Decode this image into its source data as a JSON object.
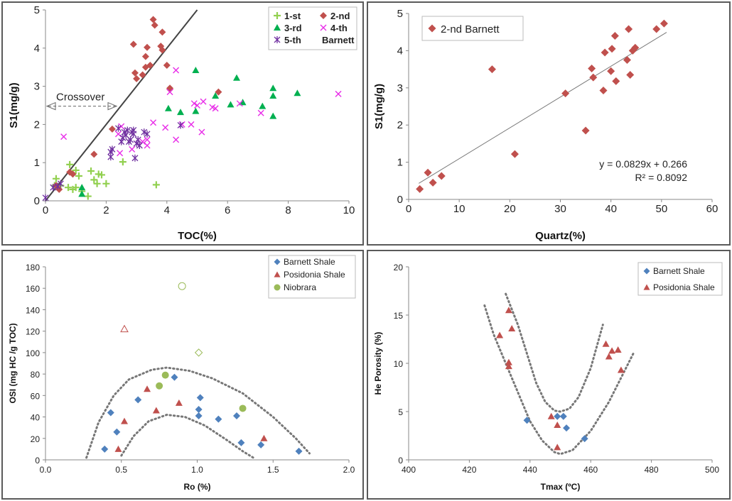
{
  "panels": [
    {
      "chart_data": {
        "type": "scatter",
        "xlabel": "TOC(%)",
        "ylabel": "S1(mg/g)",
        "xlim": [
          0,
          10
        ],
        "ylim": [
          0,
          5
        ],
        "xticks": [
          "0",
          "2",
          "4",
          "6",
          "8",
          "10"
        ],
        "yticks": [
          "0",
          "1",
          "2",
          "3",
          "4",
          "5"
        ],
        "legend_position": "top-right",
        "annotation": "Crossover",
        "crossover_line": [
          [
            0,
            0
          ],
          [
            5,
            5
          ]
        ],
        "series": [
          {
            "name": "1-st",
            "marker": "plus",
            "color": "#92d050",
            "points": [
              [
                0.3,
                0.4
              ],
              [
                0.35,
                0.58
              ],
              [
                0.5,
                0.4
              ],
              [
                0.8,
                0.95
              ],
              [
                0.9,
                0.72
              ],
              [
                1.0,
                0.8
              ],
              [
                1.1,
                0.65
              ],
              [
                0.75,
                0.35
              ],
              [
                0.9,
                0.3
              ],
              [
                1.0,
                0.35
              ],
              [
                1.2,
                0.25
              ],
              [
                1.4,
                0.12
              ],
              [
                1.5,
                0.78
              ],
              [
                1.6,
                0.55
              ],
              [
                1.7,
                0.45
              ],
              [
                1.75,
                0.7
              ],
              [
                1.85,
                0.68
              ],
              [
                2.0,
                0.45
              ],
              [
                2.55,
                1.02
              ],
              [
                3.65,
                0.42
              ]
            ]
          },
          {
            "name": "2-nd",
            "marker": "diamond",
            "color": "#c0504d",
            "points": [
              [
                0.35,
                0.4
              ],
              [
                0.45,
                0.3
              ],
              [
                0.8,
                0.75
              ],
              [
                0.9,
                0.7
              ],
              [
                1.6,
                1.22
              ],
              [
                2.2,
                1.88
              ],
              [
                2.9,
                4.1
              ],
              [
                2.95,
                3.35
              ],
              [
                3.0,
                3.2
              ],
              [
                3.2,
                3.3
              ],
              [
                3.3,
                3.5
              ],
              [
                3.3,
                3.78
              ],
              [
                3.35,
                4.02
              ],
              [
                3.45,
                3.55
              ],
              [
                3.55,
                4.75
              ],
              [
                3.6,
                4.6
              ],
              [
                3.8,
                4.05
              ],
              [
                3.85,
                4.42
              ],
              [
                3.85,
                3.95
              ],
              [
                4.0,
                3.55
              ],
              [
                4.1,
                2.92
              ],
              [
                4.1,
                2.95
              ],
              [
                5.7,
                2.85
              ]
            ]
          },
          {
            "name": "3-rd",
            "marker": "triangle",
            "color": "#00b050",
            "points": [
              [
                1.2,
                0.18
              ],
              [
                1.2,
                0.35
              ],
              [
                4.05,
                2.42
              ],
              [
                4.45,
                2.32
              ],
              [
                4.95,
                3.42
              ],
              [
                4.95,
                2.35
              ],
              [
                5.6,
                2.75
              ],
              [
                6.1,
                2.52
              ],
              [
                6.3,
                3.22
              ],
              [
                6.5,
                2.58
              ],
              [
                7.15,
                2.48
              ],
              [
                7.5,
                2.95
              ],
              [
                7.5,
                2.75
              ],
              [
                7.5,
                2.22
              ],
              [
                8.3,
                2.82
              ]
            ]
          },
          {
            "name": "4-th",
            "marker": "cross",
            "color": "#e82ce8",
            "points": [
              [
                0.6,
                1.68
              ],
              [
                2.4,
                1.75
              ],
              [
                2.45,
                1.25
              ],
              [
                2.5,
                1.95
              ],
              [
                2.85,
                1.35
              ],
              [
                3.2,
                1.55
              ],
              [
                3.35,
                1.45
              ],
              [
                3.35,
                1.6
              ],
              [
                3.55,
                2.05
              ],
              [
                3.95,
                1.92
              ],
              [
                4.1,
                2.85
              ],
              [
                4.3,
                1.6
              ],
              [
                4.3,
                3.42
              ],
              [
                4.5,
                2.0
              ],
              [
                4.8,
                2.0
              ],
              [
                4.9,
                2.55
              ],
              [
                5.0,
                2.5
              ],
              [
                5.15,
                1.8
              ],
              [
                5.2,
                2.6
              ],
              [
                5.5,
                2.45
              ],
              [
                5.6,
                2.42
              ],
              [
                6.4,
                2.55
              ],
              [
                7.1,
                2.3
              ],
              [
                9.65,
                2.8
              ]
            ]
          },
          {
            "name": "5-th",
            "marker": "asterisk",
            "color": "#7030a0",
            "points": [
              [
                0.0,
                0.08
              ],
              [
                0.25,
                0.35
              ],
              [
                0.4,
                0.38
              ],
              [
                0.5,
                0.45
              ],
              [
                2.15,
                1.15
              ],
              [
                2.15,
                1.28
              ],
              [
                2.2,
                1.35
              ],
              [
                2.4,
                1.9
              ],
              [
                2.5,
                1.55
              ],
              [
                2.55,
                1.65
              ],
              [
                2.6,
                1.8
              ],
              [
                2.65,
                1.72
              ],
              [
                2.7,
                1.85
              ],
              [
                2.75,
                1.55
              ],
              [
                2.8,
                1.6
              ],
              [
                2.85,
                1.8
              ],
              [
                2.9,
                1.75
              ],
              [
                2.9,
                1.85
              ],
              [
                2.95,
                1.12
              ],
              [
                3.0,
                1.5
              ],
              [
                3.05,
                1.6
              ],
              [
                3.1,
                1.45
              ],
              [
                3.25,
                1.8
              ],
              [
                3.35,
                1.75
              ],
              [
                4.45,
                1.98
              ]
            ]
          }
        ],
        "legend_extra": "Barnett"
      }
    },
    {
      "chart_data": {
        "type": "scatter",
        "xlabel": "Quartz(%)",
        "ylabel": "S1(mg/g)",
        "xlim": [
          0,
          60
        ],
        "ylim": [
          0,
          5
        ],
        "xticks": [
          "0",
          "10",
          "20",
          "30",
          "40",
          "50",
          "60"
        ],
        "yticks": [
          "0",
          "1",
          "2",
          "3",
          "4",
          "5"
        ],
        "legend_position": "top-left",
        "equation": "y = 0.0829x + 0.266",
        "r_squared": "R² = 0.8092",
        "trendline": {
          "slope": 0.0829,
          "intercept": 0.266,
          "x_range": [
            2,
            51
          ]
        },
        "series": [
          {
            "name": "2-nd Barnett",
            "marker": "diamond",
            "color": "#c0504d",
            "points": [
              [
                2.2,
                0.28
              ],
              [
                3.8,
                0.72
              ],
              [
                4.8,
                0.45
              ],
              [
                6.5,
                0.63
              ],
              [
                16.5,
                3.5
              ],
              [
                21,
                1.22
              ],
              [
                31,
                2.85
              ],
              [
                35,
                1.85
              ],
              [
                36.2,
                3.52
              ],
              [
                36.5,
                3.28
              ],
              [
                38.5,
                2.93
              ],
              [
                38.8,
                3.95
              ],
              [
                40,
                3.45
              ],
              [
                40.2,
                4.05
              ],
              [
                40.8,
                4.4
              ],
              [
                41,
                3.18
              ],
              [
                43.2,
                3.75
              ],
              [
                43.5,
                4.58
              ],
              [
                43.8,
                3.35
              ],
              [
                44.3,
                4.0
              ],
              [
                44.8,
                4.08
              ],
              [
                49,
                4.58
              ],
              [
                50.5,
                4.73
              ]
            ]
          }
        ]
      }
    },
    {
      "chart_data": {
        "type": "scatter",
        "xlabel": "Ro (%)",
        "ylabel": "OSI (mg HC /g TOC)",
        "xlim": [
          0,
          2.0
        ],
        "ylim": [
          0,
          180
        ],
        "xticks": [
          "0.0",
          "0.5",
          "1.0",
          "1.5",
          "2.0"
        ],
        "yticks": [
          "0",
          "20",
          "40",
          "60",
          "80",
          "100",
          "120",
          "140",
          "160",
          "180"
        ],
        "legend_position": "top-right",
        "series": [
          {
            "name": "Barnett Shale",
            "marker": "diamond",
            "color": "#4f81bd",
            "points": [
              [
                0.39,
                10
              ],
              [
                0.43,
                44
              ],
              [
                0.47,
                26
              ],
              [
                0.61,
                56
              ],
              [
                0.85,
                77
              ],
              [
                1.01,
                47
              ],
              [
                1.01,
                41
              ],
              [
                1.02,
                58
              ],
              [
                1.14,
                38
              ],
              [
                1.26,
                41
              ],
              [
                1.29,
                16
              ],
              [
                1.42,
                14
              ],
              [
                1.67,
                8
              ]
            ]
          },
          {
            "name": "Posidonia Shale",
            "marker": "triangle",
            "color": "#c0504d",
            "points": [
              [
                0.48,
                10
              ],
              [
                0.52,
                36
              ],
              [
                0.67,
                66
              ],
              [
                0.73,
                46
              ],
              [
                0.88,
                53
              ],
              [
                1.44,
                20
              ]
            ]
          },
          {
            "name": "Niobrara",
            "marker": "circle",
            "color": "#9bbb59",
            "points": [
              [
                0.75,
                69
              ],
              [
                0.79,
                79
              ],
              [
                1.3,
                48
              ]
            ]
          }
        ],
        "hollow_points": [
          {
            "marker": "triangle",
            "color": "#c0504d",
            "x": 0.52,
            "y": 122
          },
          {
            "marker": "circle",
            "color": "#9bbb59",
            "x": 0.9,
            "y": 162
          },
          {
            "marker": "diamond",
            "color": "#9bbb59",
            "x": 1.01,
            "y": 100
          }
        ]
      }
    },
    {
      "chart_data": {
        "type": "scatter",
        "xlabel": "Tmax (ºC)",
        "ylabel": "He Porosity (%)",
        "xlim": [
          400,
          500
        ],
        "ylim": [
          0,
          20
        ],
        "xticks": [
          "400",
          "420",
          "440",
          "460",
          "480",
          "500"
        ],
        "yticks": [
          "0",
          "5",
          "10",
          "15",
          "20"
        ],
        "legend_position": "top-right",
        "series": [
          {
            "name": "Barnett Shale",
            "marker": "diamond",
            "color": "#4f81bd",
            "points": [
              [
                439,
                4.1
              ],
              [
                449,
                4.5
              ],
              [
                451,
                4.5
              ],
              [
                452,
                3.3
              ],
              [
                458,
                2.2
              ]
            ]
          },
          {
            "name": "Posidonia Shale",
            "marker": "triangle",
            "color": "#c0504d",
            "points": [
              [
                430,
                12.9
              ],
              [
                433,
                15.5
              ],
              [
                433,
                10.1
              ],
              [
                433,
                9.7
              ],
              [
                434,
                13.6
              ],
              [
                447,
                4.5
              ],
              [
                449,
                3.6
              ],
              [
                449,
                1.3
              ],
              [
                465,
                12.0
              ],
              [
                466,
                10.7
              ],
              [
                467,
                11.3
              ],
              [
                469,
                11.4
              ],
              [
                470,
                9.3
              ]
            ]
          }
        ]
      }
    }
  ]
}
